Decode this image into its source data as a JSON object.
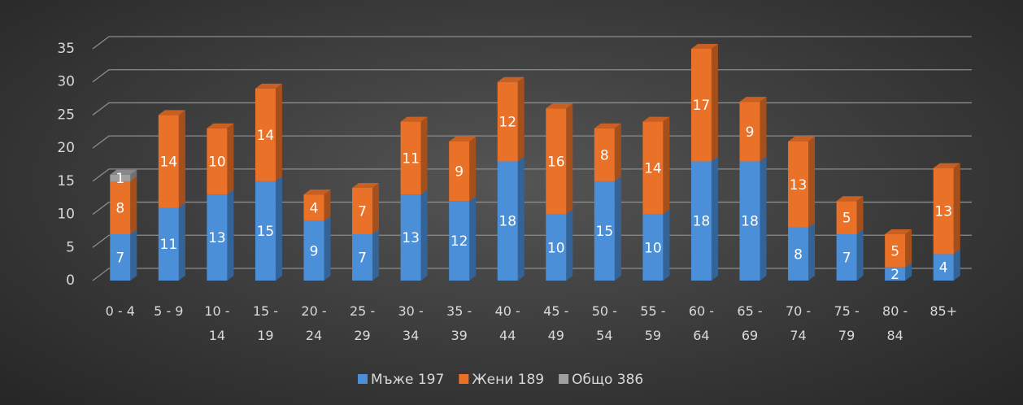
{
  "chart_data": {
    "type": "bar",
    "stacked": true,
    "categories": [
      "0 - 4",
      "5 - 9",
      "10 - 14",
      "15 - 19",
      "20 - 24",
      "25 - 29",
      "30 - 34",
      "35 - 39",
      "40 - 44",
      "45 - 49",
      "50 - 54",
      "55 - 59",
      "60 - 64",
      "65 - 69",
      "70 - 74",
      "75 - 79",
      "80 - 84",
      "85+"
    ],
    "series": [
      {
        "name": "Мъже 197",
        "color": "#4a8fd8",
        "values": [
          7,
          11,
          13,
          15,
          9,
          7,
          13,
          12,
          18,
          10,
          15,
          10,
          18,
          18,
          8,
          7,
          2,
          4
        ]
      },
      {
        "name": "Жени 189",
        "color": "#ea7128",
        "values": [
          8,
          14,
          10,
          14,
          4,
          7,
          11,
          9,
          12,
          16,
          8,
          14,
          17,
          9,
          13,
          5,
          5,
          13
        ]
      },
      {
        "name": "Общо 386",
        "color": "#a0a0a0",
        "values": [
          1,
          null,
          null,
          null,
          null,
          null,
          null,
          null,
          null,
          null,
          null,
          null,
          null,
          null,
          null,
          null,
          null,
          null
        ]
      }
    ],
    "ylim": [
      0,
      35
    ],
    "yticks": [
      0,
      5,
      10,
      15,
      20,
      25,
      30,
      35
    ],
    "grid": true,
    "legend": "bottom"
  }
}
